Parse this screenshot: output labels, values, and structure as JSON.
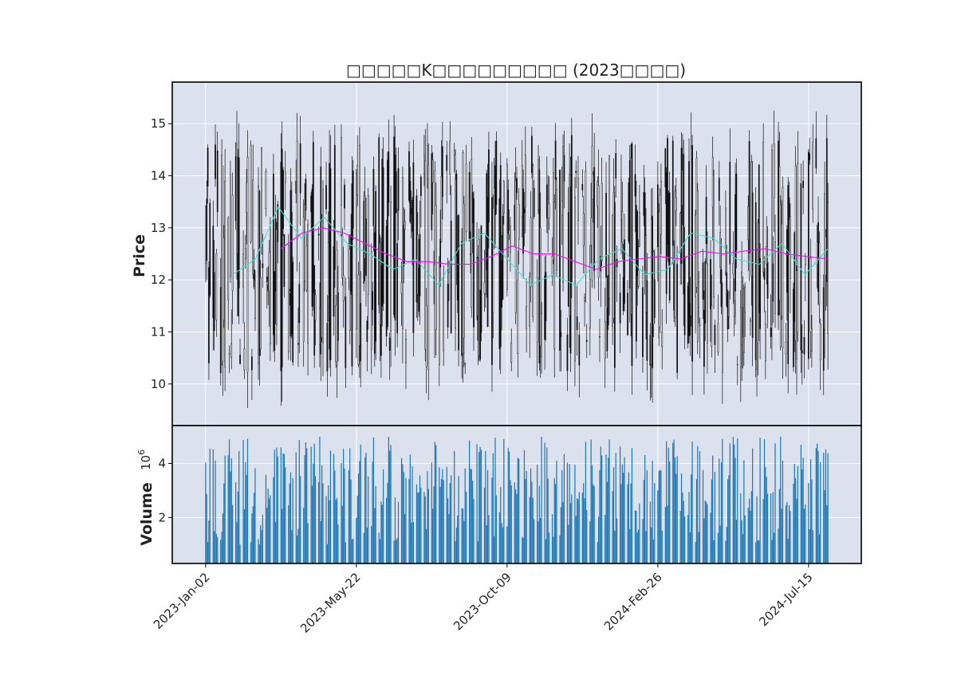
{
  "chart_data": {
    "type": "candlestick",
    "title": "□□□□□K□□□□□□□□□ (2023□□□□)",
    "x_tick_labels": [
      "2023-Jan-02",
      "2023-May-22",
      "2023-Oct-09",
      "2024-Feb-26",
      "2024-Jul-15"
    ],
    "date_range": [
      "2023-01-02",
      "2024-08-02"
    ],
    "price_panel": {
      "ylabel": "Price",
      "yticks": [
        10,
        11,
        12,
        13,
        14,
        15
      ],
      "ylim": [
        9.2,
        15.8
      ],
      "price_range_approx": [
        9.5,
        15.5
      ]
    },
    "volume_panel": {
      "ylabel": "Volume",
      "multiplier_label": "10",
      "multiplier_exponent": "6",
      "yticks": [
        2,
        4
      ],
      "yticks_text": [
        "2",
        "4"
      ],
      "ylim": [
        0.3,
        5.4
      ],
      "volume_range_approx": [
        1.0,
        5.0
      ]
    },
    "moving_averages": [
      {
        "color": "#40e0d0",
        "approx_values": [
          12.1,
          12.4,
          13.4,
          12.8,
          13.2,
          12.7,
          12.5,
          12.2,
          12.4,
          11.9,
          12.7,
          12.9,
          12.4,
          11.9,
          12.1,
          11.9,
          12.4,
          12.6,
          12.1,
          12.2,
          12.9,
          12.8,
          12.4,
          12.3,
          12.7,
          12.1,
          12.6
        ]
      },
      {
        "color": "#ff00ff",
        "approx_values": [
          12.6,
          12.9,
          13.0,
          12.9,
          12.7,
          12.5,
          12.35,
          12.35,
          12.3,
          12.3,
          12.45,
          12.65,
          12.5,
          12.5,
          12.35,
          12.2,
          12.35,
          12.4,
          12.45,
          12.4,
          12.55,
          12.5,
          12.55,
          12.6,
          12.5,
          12.45,
          12.4
        ]
      }
    ],
    "colors": {
      "panel_bg": "#dce1ee",
      "grid": "#ffffff",
      "candle": "#111111",
      "volume_bar": "#1f77b4"
    },
    "grid": true,
    "legend": "none"
  }
}
